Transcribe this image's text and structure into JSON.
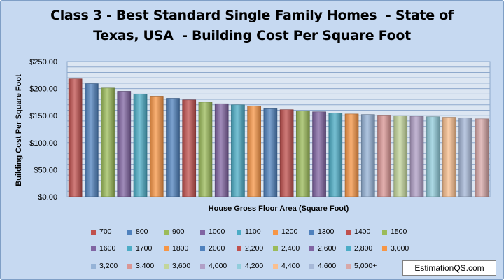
{
  "chart_data": {
    "type": "bar",
    "title_lines": [
      "Class 3 - Best Standard Single Family Homes  - State of",
      "Texas, USA  - Building Cost Per Square Foot"
    ],
    "xlabel": "House Gross Floor Area (Square Foot)",
    "ylabel": "Building Cost Per Square Foot",
    "ylim": [
      0,
      250
    ],
    "yticks": [
      "$0.00",
      "$50.00",
      "$100.00",
      "$150.00",
      "$200.00",
      "$250.00"
    ],
    "grid": true,
    "legend_position": "bottom",
    "categories": [
      "700",
      "800",
      "900",
      "1000",
      "1100",
      "1200",
      "1300",
      "1400",
      "1500",
      "1600",
      "1700",
      "1800",
      "2000",
      "2,200",
      "2,400",
      "2,600",
      "2,800",
      "3,000",
      "3,200",
      "3,400",
      "3,600",
      "4,000",
      "4,200",
      "4,400",
      "4,600",
      "5,000+"
    ],
    "values": [
      218,
      209,
      201,
      195,
      190,
      186,
      182,
      179,
      175,
      172,
      170,
      168,
      164,
      161,
      159,
      157,
      155,
      153,
      152,
      151,
      150,
      149,
      148,
      147,
      146,
      144
    ],
    "colors": [
      "#c0504d",
      "#4f81bd",
      "#9bbb59",
      "#8064a2",
      "#4bacc6",
      "#f79646",
      "#4f81bd",
      "#c0504d",
      "#9bbb59",
      "#8064a2",
      "#4bacc6",
      "#f79646",
      "#4f81bd",
      "#c0504d",
      "#9bbb59",
      "#8064a2",
      "#4bacc6",
      "#f79646",
      "#95b3d7",
      "#da9694",
      "#c3d69b",
      "#b1a0c7",
      "#92cddc",
      "#fabf8f",
      "#a6b8d8",
      "#d8a8a8"
    ]
  },
  "watermark": "EstimationQS.com"
}
